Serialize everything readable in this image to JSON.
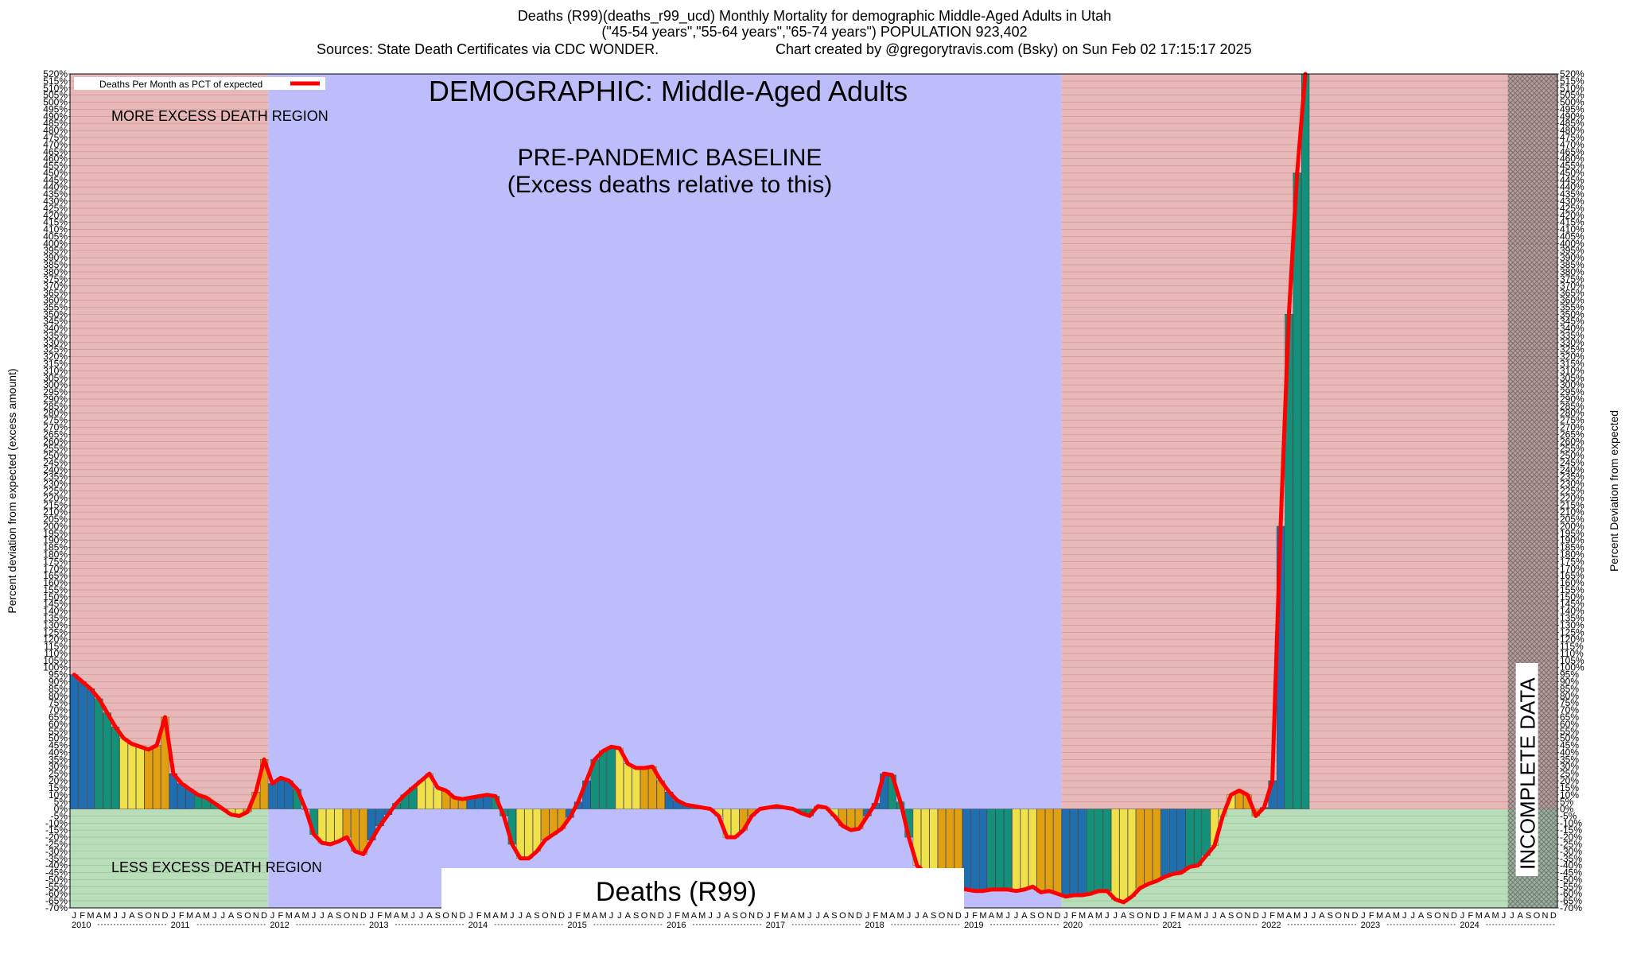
{
  "chart_data": {
    "type": "bar",
    "title_line1": "Deaths (R99)(deaths_r99_ucd) Monthly Mortality for demographic Middle-Aged Adults in Utah",
    "title_line2": "(\"45-54 years\",\"55-64 years\",\"65-74 years\") POPULATION 923,402",
    "sources": "Sources: State Death Certificates via CDC WONDER.",
    "credit": "Chart created by @gregorytravis.com (Bsky) on Sun Feb 02 17:15:17 2025",
    "demographic_label": "DEMOGRAPHIC: Middle-Aged Adults",
    "baseline_label_1": "PRE-PANDEMIC BASELINE",
    "baseline_label_2": "(Excess deaths relative to this)",
    "more_region_label": "MORE EXCESS DEATH REGION",
    "less_region_label": "LESS EXCESS DEATH REGION",
    "box_label": "Deaths (R99)",
    "incomplete_label": "INCOMPLETE DATA",
    "legend_label": "Deaths Per Month as PCT of expected",
    "ylabel_left": "Percent deviation from expected (excess amount)",
    "ylabel_right": "Percent Deviation from expected",
    "ylim": [
      -70,
      520
    ],
    "ytick_step": 5,
    "month_letters": [
      "J",
      "F",
      "M",
      "A",
      "M",
      "J",
      "J",
      "A",
      "S",
      "O",
      "N",
      "D"
    ],
    "years": [
      "2010",
      "2011",
      "2012",
      "2013",
      "2014",
      "2015",
      "2016",
      "2017",
      "2018",
      "2019",
      "2020",
      "2021",
      "2022",
      "2023",
      "2024"
    ],
    "baseline_period": [
      "2012-01",
      "2019-12"
    ],
    "incomplete_period": [
      "2024-07",
      "2024-12"
    ],
    "colors": {
      "line": "#ff0000",
      "more_region": "#e6b8b8",
      "less_region": "#b9dcb9",
      "baseline_region": "#bdbdfc",
      "bars": [
        "#1f6fb0",
        "#13907a",
        "#f0e14a",
        "#e0a012"
      ]
    },
    "values": [
      95,
      90,
      85,
      78,
      68,
      58,
      50,
      46,
      44,
      42,
      45,
      65,
      25,
      18,
      14,
      10,
      8,
      4,
      0,
      -4,
      -5,
      -2,
      12,
      35,
      18,
      22,
      20,
      14,
      0,
      -18,
      -24,
      -25,
      -23,
      -20,
      -30,
      -32,
      -22,
      -12,
      -4,
      4,
      10,
      15,
      20,
      25,
      15,
      13,
      8,
      7,
      8,
      9,
      10,
      9,
      -5,
      -25,
      -35,
      -35,
      -30,
      -22,
      -18,
      -14,
      -6,
      5,
      20,
      35,
      41,
      44,
      43,
      32,
      29,
      29,
      30,
      20,
      12,
      6,
      3,
      2,
      1,
      0,
      -5,
      -20,
      -20,
      -15,
      -5,
      0,
      1,
      2,
      1,
      0,
      -3,
      -5,
      2,
      1,
      -5,
      -12,
      -15,
      -14,
      -5,
      4,
      25,
      24,
      5,
      -20,
      -40,
      -45,
      -48,
      -50,
      -55,
      -56,
      -57,
      -58,
      -58,
      -57,
      -57,
      -57,
      -58,
      -57,
      -55,
      -59,
      -58,
      -60,
      -62,
      -61,
      -61,
      -60,
      -58,
      -58,
      -64,
      -66,
      -62,
      -56,
      -53,
      -51,
      -48,
      -46,
      -45,
      -41,
      -40,
      -33,
      -26,
      -5,
      10,
      13,
      10,
      -5,
      1,
      20,
      200,
      350,
      450,
      520
    ]
  }
}
